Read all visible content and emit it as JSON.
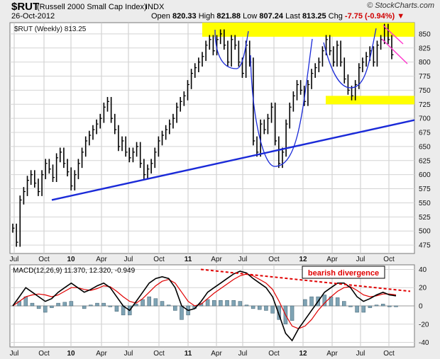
{
  "header": {
    "symbol": "$RUT",
    "name": "(Russell 2000 Small Cap Index)",
    "exchange": "INDX",
    "date": "26-Oct-2012",
    "open_label": "Open",
    "open": "820.33",
    "high_label": "High",
    "high": "821.88",
    "low_label": "Low",
    "low": "807.24",
    "last_label": "Last",
    "last": "813.25",
    "chg_label": "Chg",
    "chg": "-7.75 (-0.94%)",
    "chg_arrow": "▼",
    "brand": "© StockCharts.com"
  },
  "chart_data": [
    {
      "type": "bar",
      "title": "$RUT (Weekly) 813.25",
      "legend_placement": "top-left",
      "ylim": [
        460,
        870
      ],
      "yticks": [
        475,
        500,
        525,
        550,
        575,
        600,
        625,
        650,
        675,
        700,
        725,
        750,
        775,
        800,
        825,
        850
      ],
      "xticks": [
        "Jul",
        "Oct",
        "10",
        "Apr",
        "Jul",
        "Oct",
        "11",
        "Apr",
        "Jul",
        "Oct",
        "12",
        "Apr",
        "Jul",
        "Oct"
      ],
      "grid": true,
      "colors": {
        "price": "#000000",
        "trendline": "#1a2ad8",
        "resistance": "#ffff00",
        "wedge": "#ff33cc"
      },
      "series": [
        {
          "values": [
            505,
            480,
            555,
            570,
            590,
            600,
            585,
            570,
            600,
            620,
            610,
            595,
            630,
            640,
            620,
            605,
            580,
            600,
            620,
            640,
            660,
            670,
            680,
            690,
            700,
            720,
            730,
            700,
            680,
            650,
            660,
            640,
            630,
            640,
            650,
            620,
            600,
            610,
            620,
            640,
            660,
            670,
            680,
            690,
            700,
            720,
            730,
            740,
            760,
            780,
            790,
            800,
            810,
            830,
            840,
            820,
            840,
            850,
            830,
            800,
            840,
            830,
            800,
            780,
            830,
            800,
            660,
            640,
            690,
            680,
            700,
            720,
            660,
            620,
            640,
            690,
            720,
            740,
            760,
            750,
            730,
            760,
            780,
            790,
            800,
            820,
            840,
            820,
            800,
            830,
            800,
            770,
            750,
            740,
            760,
            790,
            800,
            810,
            820,
            800,
            830,
            840,
            860,
            840,
            813
          ]
        }
      ],
      "annotations": []
    },
    {
      "type": "line",
      "title": "MACD(12,26,9) 11.370, 12.320, -0.949",
      "legend_placement": "top-left",
      "ylim": [
        -45,
        45
      ],
      "yticks": [
        -40,
        -20,
        0,
        20,
        40
      ],
      "xticks": [
        "Jul",
        "Oct",
        "10",
        "Apr",
        "Jul",
        "Oct",
        "11",
        "Apr",
        "Jul",
        "Oct",
        "12",
        "Apr",
        "Jul",
        "Oct"
      ],
      "series": [
        {
          "values": [
            0,
            10,
            20,
            15,
            10,
            5,
            8,
            15,
            20,
            25,
            20,
            15,
            18,
            22,
            25,
            20,
            10,
            0,
            -5,
            5,
            15,
            25,
            30,
            32,
            30,
            20,
            0,
            -5,
            -3,
            5,
            15,
            20,
            25,
            30,
            35,
            38,
            36,
            30,
            25,
            20,
            10,
            -10,
            -30,
            -38,
            -25,
            -15,
            -5,
            5,
            15,
            20,
            25,
            25,
            20,
            10,
            5,
            8,
            12,
            15,
            12,
            11
          ]
        },
        {
          "values": [
            0,
            5,
            10,
            12,
            13,
            12,
            10,
            12,
            16,
            20,
            20,
            18,
            17,
            19,
            22,
            21,
            16,
            10,
            5,
            3,
            8,
            15,
            22,
            27,
            29,
            25,
            15,
            5,
            0,
            2,
            8,
            14,
            19,
            24,
            29,
            33,
            35,
            33,
            29,
            25,
            18,
            5,
            -10,
            -22,
            -25,
            -22,
            -15,
            -5,
            3,
            10,
            16,
            20,
            21,
            17,
            12,
            10,
            11,
            13,
            13,
            12
          ]
        }
      ],
      "histogram": [],
      "annotations": [
        "bearish divergence"
      ]
    }
  ]
}
